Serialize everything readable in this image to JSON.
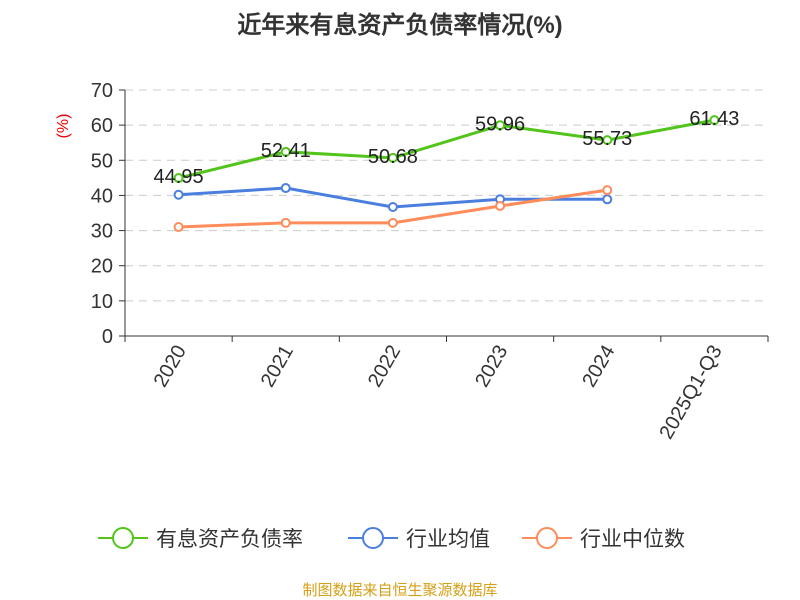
{
  "chart_data": {
    "type": "line",
    "title": "近年来有息资产负债率情况(%)",
    "ylabel": "(%)",
    "categories": [
      "2020",
      "2021",
      "2022",
      "2023",
      "2024",
      "2025Q1-Q3"
    ],
    "ylim": [
      0,
      70
    ],
    "yticks": [
      "0",
      "10",
      "20",
      "30",
      "40",
      "50",
      "60",
      "70"
    ],
    "grid": true,
    "legend_position": "bottom",
    "series": [
      {
        "name": "有息资产负债率",
        "color": "#52c41a",
        "values": [
          44.95,
          52.41,
          50.68,
          59.96,
          55.73,
          61.43
        ],
        "labels": [
          "44.95",
          "52.41",
          "50.68",
          "59.96",
          "55.73",
          "61.43"
        ]
      },
      {
        "name": "行业均值",
        "color": "#4a7fe0",
        "values": [
          40.2,
          42.1,
          36.7,
          38.9,
          38.9,
          null
        ]
      },
      {
        "name": "行业中位数",
        "color": "#ff8c5a",
        "values": [
          31.0,
          32.2,
          32.2,
          37.0,
          41.5,
          null
        ]
      }
    ]
  },
  "footer": "制图数据来自恒生聚源数据库"
}
